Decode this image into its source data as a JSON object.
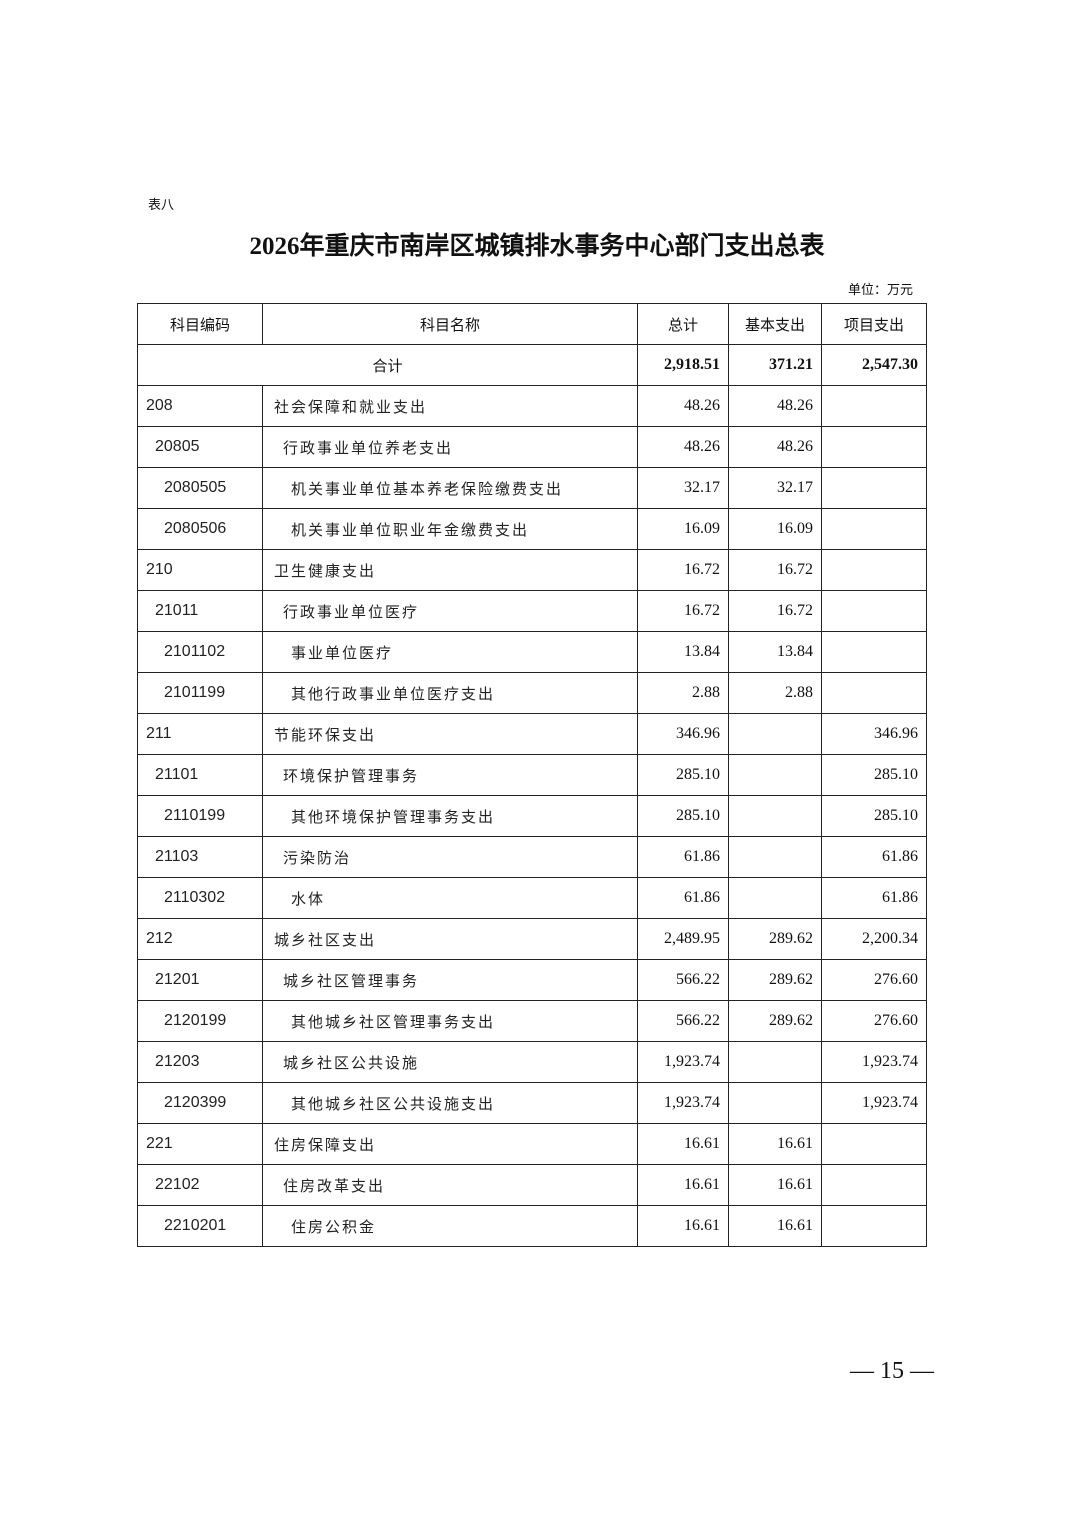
{
  "doc": {
    "label": "表八",
    "title": "2026年重庆市南岸区城镇排水事务中心部门支出总表",
    "unit": "单位：万元",
    "page_number": "— 15 —"
  },
  "table": {
    "headers": [
      "科目编码",
      "科目名称",
      "总计",
      "基本支出",
      "项目支出"
    ],
    "total": {
      "label": "合计",
      "total": "2,918.51",
      "basic": "371.21",
      "project": "2,547.30"
    },
    "rows": [
      {
        "level": 0,
        "code": "208",
        "name": "社会保障和就业支出",
        "total": "48.26",
        "basic": "48.26",
        "project": ""
      },
      {
        "level": 1,
        "code": "20805",
        "name": "行政事业单位养老支出",
        "total": "48.26",
        "basic": "48.26",
        "project": ""
      },
      {
        "level": 2,
        "code": "2080505",
        "name": "机关事业单位基本养老保险缴费支出",
        "total": "32.17",
        "basic": "32.17",
        "project": ""
      },
      {
        "level": 2,
        "code": "2080506",
        "name": "机关事业单位职业年金缴费支出",
        "total": "16.09",
        "basic": "16.09",
        "project": ""
      },
      {
        "level": 0,
        "code": "210",
        "name": "卫生健康支出",
        "total": "16.72",
        "basic": "16.72",
        "project": ""
      },
      {
        "level": 1,
        "code": "21011",
        "name": "行政事业单位医疗",
        "total": "16.72",
        "basic": "16.72",
        "project": ""
      },
      {
        "level": 2,
        "code": "2101102",
        "name": "事业单位医疗",
        "total": "13.84",
        "basic": "13.84",
        "project": ""
      },
      {
        "level": 2,
        "code": "2101199",
        "name": "其他行政事业单位医疗支出",
        "total": "2.88",
        "basic": "2.88",
        "project": ""
      },
      {
        "level": 0,
        "code": "211",
        "name": "节能环保支出",
        "total": "346.96",
        "basic": "",
        "project": "346.96"
      },
      {
        "level": 1,
        "code": "21101",
        "name": "环境保护管理事务",
        "total": "285.10",
        "basic": "",
        "project": "285.10"
      },
      {
        "level": 2,
        "code": "2110199",
        "name": "其他环境保护管理事务支出",
        "total": "285.10",
        "basic": "",
        "project": "285.10"
      },
      {
        "level": 1,
        "code": "21103",
        "name": "污染防治",
        "total": "61.86",
        "basic": "",
        "project": "61.86"
      },
      {
        "level": 2,
        "code": "2110302",
        "name": "水体",
        "total": "61.86",
        "basic": "",
        "project": "61.86"
      },
      {
        "level": 0,
        "code": "212",
        "name": "城乡社区支出",
        "total": "2,489.95",
        "basic": "289.62",
        "project": "2,200.34"
      },
      {
        "level": 1,
        "code": "21201",
        "name": "城乡社区管理事务",
        "total": "566.22",
        "basic": "289.62",
        "project": "276.60"
      },
      {
        "level": 2,
        "code": "2120199",
        "name": "其他城乡社区管理事务支出",
        "total": "566.22",
        "basic": "289.62",
        "project": "276.60"
      },
      {
        "level": 1,
        "code": "21203",
        "name": "城乡社区公共设施",
        "total": "1,923.74",
        "basic": "",
        "project": "1,923.74"
      },
      {
        "level": 2,
        "code": "2120399",
        "name": "其他城乡社区公共设施支出",
        "total": "1,923.74",
        "basic": "",
        "project": "1,923.74"
      },
      {
        "level": 0,
        "code": "221",
        "name": "住房保障支出",
        "total": "16.61",
        "basic": "16.61",
        "project": ""
      },
      {
        "level": 1,
        "code": "22102",
        "name": "住房改革支出",
        "total": "16.61",
        "basic": "16.61",
        "project": ""
      },
      {
        "level": 2,
        "code": "2210201",
        "name": "住房公积金",
        "total": "16.61",
        "basic": "16.61",
        "project": ""
      }
    ]
  }
}
